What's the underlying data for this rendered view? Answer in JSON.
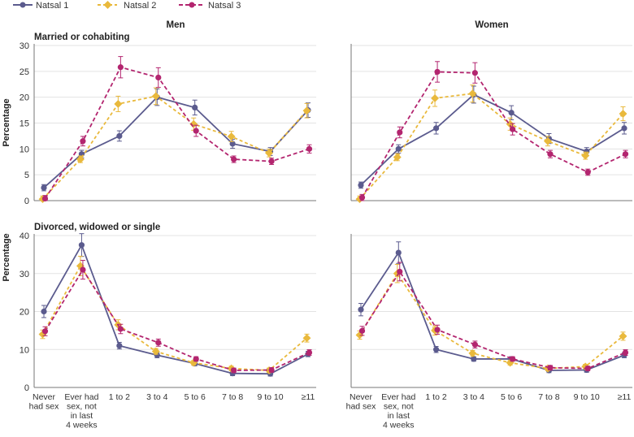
{
  "legend": {
    "entries": [
      {
        "label": "Natsal 1",
        "color": "#5b5b8e"
      },
      {
        "label": "Natsal 2",
        "color": "#e9b93c"
      },
      {
        "label": "Natsal 3",
        "color": "#b3256f"
      }
    ]
  },
  "columns": {
    "men": "Men",
    "women": "Women"
  },
  "rows": {
    "top": "Married or cohabiting",
    "bottom": "Divorced, widowed or single"
  },
  "ylabel": "Percentage",
  "chart_data": [
    {
      "type": "line",
      "group": "Men",
      "row": "Married or cohabiting",
      "categories": [
        "Never had sex",
        "Ever had sex, not in last 4 weeks",
        "1 to 2",
        "3 to 4",
        "5 to 6",
        "7 to 8",
        "9 to 10",
        "≥11"
      ],
      "ylim": [
        0,
        30
      ],
      "yticks": [
        0,
        5,
        10,
        15,
        20,
        25,
        30
      ],
      "series": [
        {
          "name": "Natsal 1",
          "values": [
            2.5,
            9.0,
            12.5,
            20.0,
            18.0,
            11.0,
            9.5,
            17.5
          ]
        },
        {
          "name": "Natsal 2",
          "values": [
            0.3,
            8.0,
            18.7,
            20.2,
            14.8,
            12.4,
            9.2,
            17.4
          ]
        },
        {
          "name": "Natsal 3",
          "values": [
            0.4,
            11.5,
            25.8,
            23.8,
            13.5,
            8.0,
            7.6,
            10.0
          ]
        }
      ]
    },
    {
      "type": "line",
      "group": "Women",
      "row": "Married or cohabiting",
      "categories": [
        "Never had sex",
        "Ever had sex, not in last 4 weeks",
        "1 to 2",
        "3 to 4",
        "5 to 6",
        "7 to 8",
        "9 to 10",
        "≥11"
      ],
      "ylim": [
        0,
        30
      ],
      "yticks": [
        0,
        5,
        10,
        15,
        20,
        25,
        30
      ],
      "series": [
        {
          "name": "Natsal 1",
          "values": [
            3.0,
            10.0,
            14.0,
            20.5,
            17.0,
            12.0,
            9.5,
            14.0
          ]
        },
        {
          "name": "Natsal 2",
          "values": [
            0.3,
            8.4,
            19.8,
            20.7,
            14.8,
            11.5,
            8.7,
            16.8
          ]
        },
        {
          "name": "Natsal 3",
          "values": [
            0.6,
            13.2,
            24.9,
            24.7,
            13.8,
            9.0,
            5.5,
            9.0
          ]
        }
      ]
    },
    {
      "type": "line",
      "group": "Men",
      "row": "Divorced, widowed or single",
      "categories": [
        "Never had sex",
        "Ever had sex, not in last 4 weeks",
        "1 to 2",
        "3 to 4",
        "5 to 6",
        "7 to 8",
        "9 to 10",
        "≥11"
      ],
      "ylim": [
        0,
        40
      ],
      "yticks": [
        0,
        10,
        20,
        30,
        40
      ],
      "series": [
        {
          "name": "Natsal 1",
          "values": [
            20.0,
            37.5,
            11.0,
            8.5,
            6.3,
            3.7,
            3.6,
            8.8
          ]
        },
        {
          "name": "Natsal 2",
          "values": [
            14.0,
            32.0,
            16.5,
            9.5,
            6.5,
            5.0,
            4.5,
            13.0
          ]
        },
        {
          "name": "Natsal 3",
          "values": [
            14.8,
            31.0,
            15.4,
            11.8,
            7.5,
            4.5,
            4.6,
            9.2
          ]
        }
      ]
    },
    {
      "type": "line",
      "group": "Women",
      "row": "Divorced, widowed or single",
      "categories": [
        "Never had sex",
        "Ever had sex, not in last 4 weeks",
        "1 to 2",
        "3 to 4",
        "5 to 6",
        "7 to 8",
        "9 to 10",
        "≥11"
      ],
      "ylim": [
        0,
        40
      ],
      "yticks": [
        0,
        10,
        20,
        30,
        40
      ],
      "series": [
        {
          "name": "Natsal 1",
          "values": [
            20.5,
            35.5,
            10.0,
            7.5,
            7.5,
            4.5,
            4.6,
            8.5
          ]
        },
        {
          "name": "Natsal 2",
          "values": [
            13.8,
            30.0,
            15.0,
            9.0,
            6.5,
            5.0,
            5.5,
            13.5
          ]
        },
        {
          "name": "Natsal 3",
          "values": [
            14.9,
            30.5,
            15.2,
            11.3,
            7.5,
            5.2,
            5.0,
            9.2
          ]
        }
      ]
    }
  ],
  "xlabels": [
    [
      "Never",
      "had sex"
    ],
    [
      "Ever had",
      "sex, not",
      "in last",
      "4 weeks"
    ],
    [
      "1 to 2"
    ],
    [
      "3 to 4"
    ],
    [
      "5 to 6"
    ],
    [
      "7 to 8"
    ],
    [
      "9 to 10"
    ],
    [
      "≥11"
    ]
  ]
}
